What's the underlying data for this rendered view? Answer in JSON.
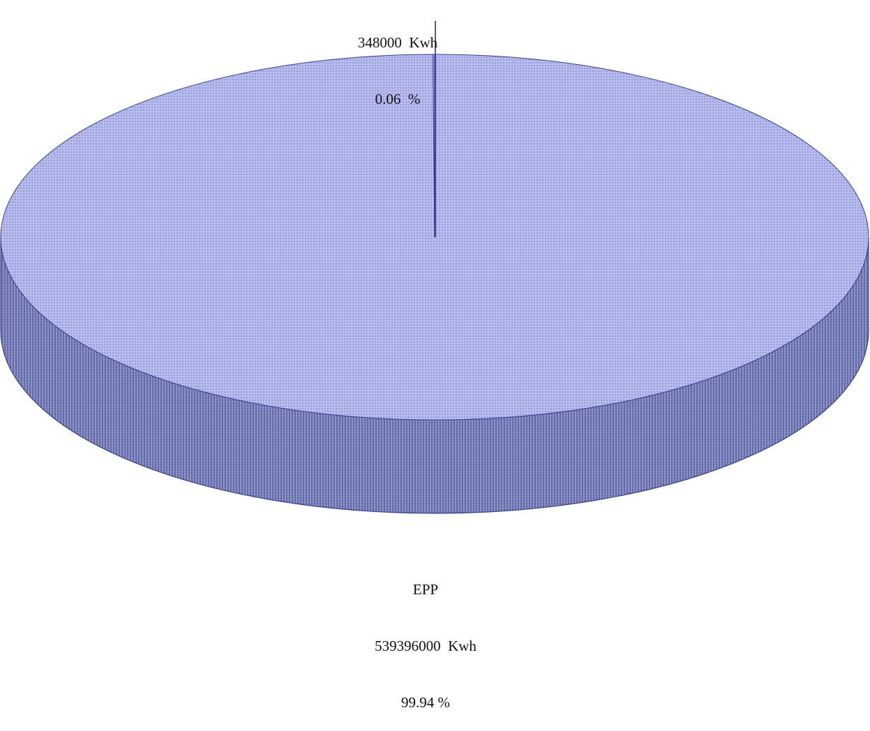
{
  "chart_data": {
    "type": "pie",
    "style": "3d",
    "unit": "Kwh",
    "slices": [
      {
        "name": "EPP",
        "value": 539396000,
        "percent": 99.94,
        "value_label": "539396000  Kwh",
        "percent_label": "99.94 %"
      },
      {
        "name": "",
        "value": 348000,
        "percent": 0.06,
        "value_label": "348000  Kwh",
        "percent_label": "0.06  %"
      }
    ]
  },
  "colors": {
    "top": "#b8bcec",
    "top_dots": "#7c82cf",
    "side_light": "#9fa4dc",
    "side_dark": "#4c5181",
    "outline": "#3a3f8f",
    "leader_line": "#2f3380"
  }
}
